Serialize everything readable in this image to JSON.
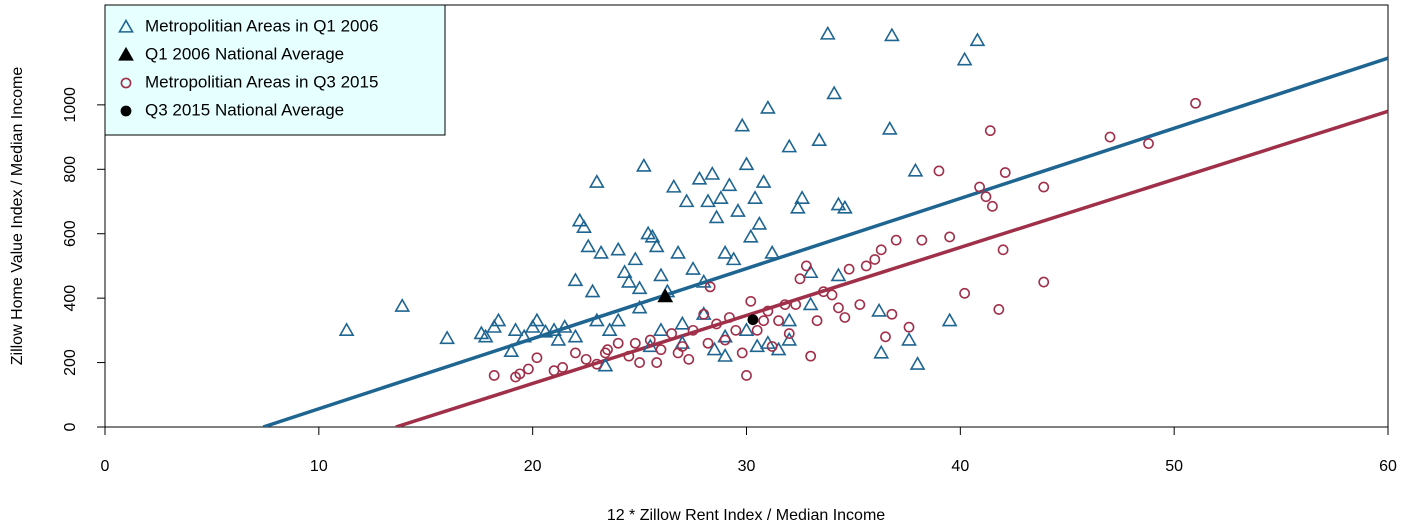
{
  "chart_data": {
    "type": "scatter",
    "xlabel": "12 * Zillow Rent Index / Median Income",
    "ylabel": "Zillow Home Value Index / Median Income",
    "xlim": [
      0,
      60
    ],
    "xticks": [
      0,
      10,
      20,
      30,
      40,
      50,
      60
    ],
    "ylim": [
      0,
      1310
    ],
    "yticks": [
      0,
      200,
      400,
      600,
      800,
      1000
    ],
    "legend": "top-left",
    "series": [
      {
        "name": "Metropolitian Areas in Q1 2006",
        "color": "#1f6591",
        "marker": "triangle-open",
        "x": [
          11.3,
          13.9,
          16,
          17.6,
          17.8,
          18.2,
          18.4,
          19,
          19.2,
          19.6,
          20,
          20.2,
          20.6,
          21,
          21.2,
          21.5,
          22,
          22.2,
          22.4,
          22.6,
          22.8,
          23,
          23.2,
          23.4,
          23.6,
          24,
          24.3,
          24.5,
          24.8,
          25,
          25.2,
          25.4,
          25.6,
          25.8,
          26,
          26.3,
          26.6,
          26.8,
          27.2,
          27.5,
          27.8,
          28,
          28.2,
          28.4,
          28.6,
          28.8,
          29,
          29.2,
          29.4,
          29.6,
          29.8,
          30,
          30.2,
          30.4,
          30.6,
          30.8,
          31,
          31.2,
          32,
          32.4,
          32.6,
          33,
          33.4,
          33.8,
          34.1,
          34.3,
          34.6,
          36.2,
          36.3,
          36.7,
          36.8,
          37.6,
          37.9,
          38,
          39.5,
          40.2,
          40.8,
          24,
          25,
          26,
          27,
          28,
          29,
          30,
          31,
          32,
          23,
          22,
          25.5,
          27,
          28.5,
          29,
          30.5,
          31.5,
          32,
          33,
          34.3
        ],
        "values": [
          300,
          375,
          275,
          290,
          280,
          310,
          330,
          235,
          300,
          280,
          310,
          330,
          295,
          300,
          270,
          310,
          455,
          640,
          620,
          560,
          420,
          760,
          540,
          190,
          300,
          550,
          480,
          450,
          520,
          430,
          810,
          600,
          590,
          560,
          470,
          420,
          745,
          540,
          700,
          490,
          770,
          450,
          700,
          785,
          650,
          710,
          540,
          750,
          520,
          670,
          935,
          815,
          590,
          710,
          630,
          760,
          990,
          540,
          870,
          680,
          710,
          480,
          890,
          1220,
          1035,
          690,
          680,
          360,
          230,
          925,
          1215,
          270,
          795,
          195,
          330,
          1140,
          1200,
          330,
          370,
          300,
          320,
          350,
          280,
          300,
          260,
          330,
          330,
          280,
          250,
          260,
          240,
          220,
          250,
          240,
          270,
          380,
          470
        ]
      },
      {
        "name": "Q1 2006 National Average",
        "color": "#000000",
        "marker": "triangle",
        "x": [
          26.2
        ],
        "values": [
          405
        ]
      },
      {
        "name": "Metropolitian Areas in Q3 2015",
        "color": "#a0304a",
        "marker": "circle-open",
        "x": [
          18.2,
          19.2,
          19.4,
          19.8,
          20.2,
          21,
          21.4,
          22,
          22.5,
          23,
          23.5,
          24,
          24.5,
          25,
          25.5,
          26,
          26.5,
          27,
          27.5,
          28,
          28.3,
          28.6,
          29,
          29.5,
          29.8,
          30,
          30.2,
          30.5,
          31,
          31.2,
          31.5,
          31.8,
          32,
          32.5,
          32.8,
          33,
          33.3,
          33.6,
          34,
          34.3,
          34.6,
          34.8,
          35.3,
          35.6,
          36,
          36.3,
          36.5,
          36.8,
          37,
          37.6,
          38.2,
          39,
          39.5,
          40.2,
          40.9,
          41.2,
          41.4,
          41.5,
          41.8,
          42,
          42.1,
          43.9,
          43.9,
          47,
          48.8,
          51,
          23.4,
          24.8,
          26.8,
          28.2,
          30.8,
          32.3,
          27.3,
          25.8,
          29.2
        ],
        "values": [
          160,
          155,
          165,
          180,
          215,
          175,
          185,
          230,
          210,
          195,
          240,
          260,
          220,
          200,
          270,
          240,
          290,
          250,
          300,
          350,
          435,
          320,
          270,
          300,
          230,
          160,
          390,
          300,
          360,
          250,
          330,
          380,
          290,
          460,
          500,
          220,
          330,
          420,
          410,
          370,
          340,
          490,
          380,
          500,
          520,
          550,
          280,
          350,
          580,
          310,
          580,
          795,
          590,
          415,
          745,
          715,
          920,
          685,
          365,
          550,
          790,
          745,
          450,
          900,
          880,
          1005,
          230,
          260,
          230,
          260,
          330,
          380,
          210,
          200,
          340
        ]
      },
      {
        "name": "Q3 2015 National Average",
        "color": "#000000",
        "marker": "circle",
        "x": [
          30.3
        ],
        "values": [
          333
        ]
      }
    ],
    "fit_lines": [
      {
        "color": "#1f6591",
        "x": [
          7.4,
          60
        ],
        "y": [
          0,
          1145
        ]
      },
      {
        "color": "#a0304a",
        "x": [
          13.6,
          60
        ],
        "y": [
          0,
          980
        ]
      }
    ]
  }
}
